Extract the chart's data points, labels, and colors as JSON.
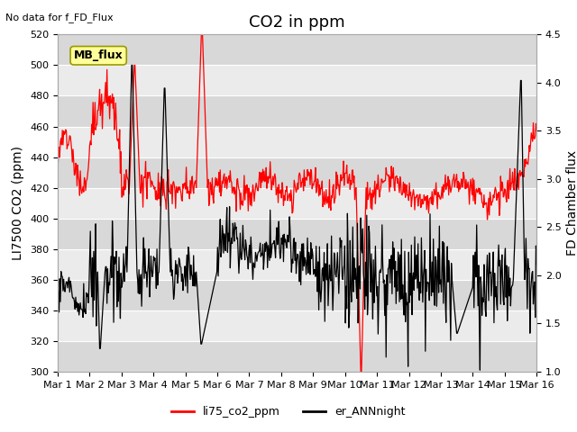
{
  "title": "CO2 in ppm",
  "top_left_text": "No data for f_FD_Flux",
  "ylabel_left": "LI7500 CO2 (ppm)",
  "ylabel_right": "FD Chamber flux",
  "ylim_left": [
    300,
    520
  ],
  "ylim_right": [
    1.0,
    4.5
  ],
  "yticks_left": [
    300,
    320,
    340,
    360,
    380,
    400,
    420,
    440,
    460,
    480,
    500,
    520
  ],
  "yticks_right": [
    1.0,
    1.5,
    2.0,
    2.5,
    3.0,
    3.5,
    4.0,
    4.5
  ],
  "xtick_labels": [
    "Mar 1",
    "Mar 2",
    "Mar 3",
    "Mar 4",
    "Mar 5",
    "Mar 6",
    "Mar 7",
    "Mar 8",
    "Mar 9",
    "Mar 10",
    "Mar 11",
    "Mar 12",
    "Mar 13",
    "Mar 14",
    "Mar 15",
    "Mar 16"
  ],
  "legend_box_label": "MB_flux",
  "legend_box_color": "#ffff99",
  "legend_box_edge": "#999900",
  "line1_color": "#ff0000",
  "line1_label": "li75_co2_ppm",
  "line2_color": "#000000",
  "line2_label": "er_ANNnight",
  "bg_color": "#ffffff",
  "plot_bg_color": "#ebebeb",
  "strip_color": "#d8d8d8",
  "grid_color": "#ffffff",
  "title_fontsize": 13,
  "axis_label_fontsize": 10,
  "tick_fontsize": 8,
  "n_days": 15,
  "points_per_day": 48
}
